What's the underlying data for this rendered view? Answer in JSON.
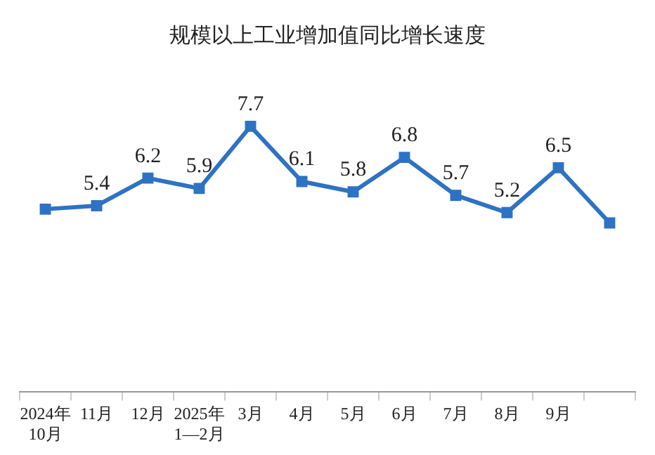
{
  "chart_data": {
    "type": "line",
    "title": "规模以上工业增加值同比增长速度",
    "categories": [
      "2024年10月",
      "11月",
      "12月",
      "2025年1—2月",
      "3月",
      "4月",
      "5月",
      "6月",
      "7月",
      "8月",
      "9月",
      null
    ],
    "series": [
      {
        "color": "#2e72c4",
        "values": [
          5.3,
          5.4,
          6.2,
          5.9,
          7.7,
          6.1,
          5.8,
          6.8,
          5.7,
          5.2,
          6.5,
          4.9
        ],
        "value_labels": [
          null,
          "5.4",
          "6.2",
          "5.9",
          "7.7",
          "6.1",
          "5.8",
          "6.8",
          "5.7",
          "5.2",
          "6.5",
          null
        ]
      }
    ],
    "grid": false,
    "legend": false,
    "marker": "square",
    "line_style": "solid",
    "tick_labels": "x"
  }
}
